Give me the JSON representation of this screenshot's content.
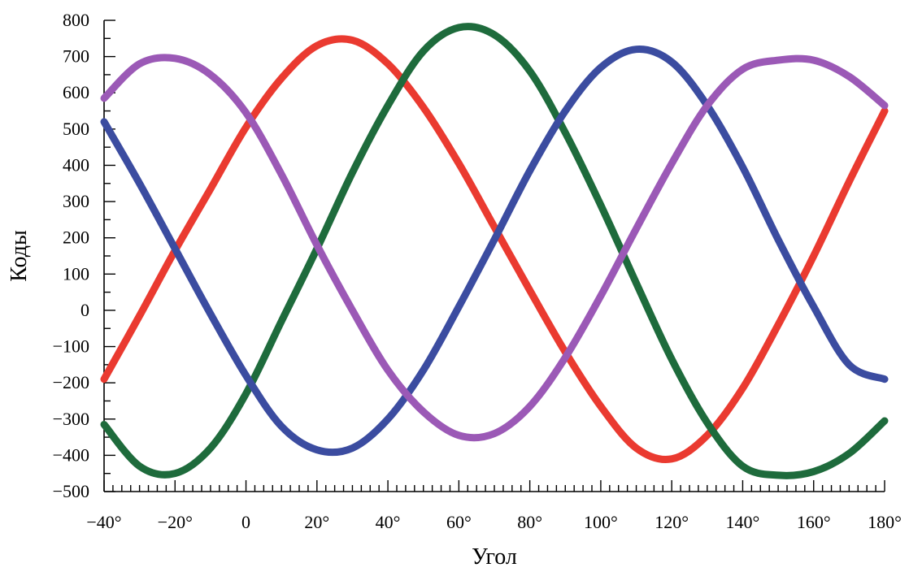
{
  "chart_data": {
    "type": "line",
    "title": "",
    "xlabel": "Угол",
    "ylabel": "Коды",
    "xlim": [
      -40,
      180
    ],
    "ylim": [
      -500,
      800
    ],
    "grid": false,
    "legend": "none",
    "x_ticks": [
      -40,
      -20,
      0,
      20,
      40,
      60,
      80,
      100,
      120,
      140,
      160,
      180
    ],
    "x_tick_labels": [
      "−40°",
      "−20°",
      "0",
      "20°",
      "40°",
      "60°",
      "80°",
      "100°",
      "120°",
      "140°",
      "160°",
      "180°"
    ],
    "x_minor_step": 2.5,
    "y_ticks": [
      -500,
      -400,
      -300,
      -200,
      -100,
      0,
      100,
      200,
      300,
      400,
      500,
      600,
      700,
      800
    ],
    "y_tick_labels": [
      "−500",
      "−400",
      "−300",
      "−200",
      "−100",
      "0",
      "100",
      "200",
      "300",
      "400",
      "500",
      "600",
      "700",
      "800"
    ],
    "y_minor_step": 50,
    "x": [
      -40,
      -30,
      -20,
      -10,
      0,
      10,
      20,
      30,
      40,
      50,
      60,
      70,
      80,
      90,
      100,
      110,
      120,
      130,
      140,
      150,
      160,
      170,
      180
    ],
    "series": [
      {
        "color": "#ea3a30",
        "values": [
          -190,
          -15,
          165,
          335,
          505,
          640,
          730,
          745,
          680,
          560,
          405,
          230,
          55,
          -115,
          -265,
          -380,
          -410,
          -345,
          -215,
          -40,
          150,
          355,
          550
        ]
      },
      {
        "color": "#1e6b3c",
        "values": [
          -315,
          -430,
          -450,
          -380,
          -230,
          -30,
          170,
          380,
          565,
          715,
          780,
          760,
          660,
          490,
          290,
          75,
          -135,
          -310,
          -430,
          -455,
          -445,
          -395,
          -305
        ]
      },
      {
        "color": "#3b4ca0",
        "values": [
          520,
          350,
          170,
          -10,
          -180,
          -320,
          -385,
          -380,
          -300,
          -165,
          10,
          195,
          385,
          550,
          670,
          720,
          685,
          565,
          395,
          195,
          10,
          -150,
          -190
        ]
      },
      {
        "color": "#9b59b6",
        "values": [
          585,
          680,
          695,
          650,
          545,
          375,
          180,
          0,
          -165,
          -280,
          -345,
          -340,
          -265,
          -130,
          40,
          225,
          405,
          565,
          665,
          690,
          690,
          645,
          565
        ]
      }
    ]
  }
}
